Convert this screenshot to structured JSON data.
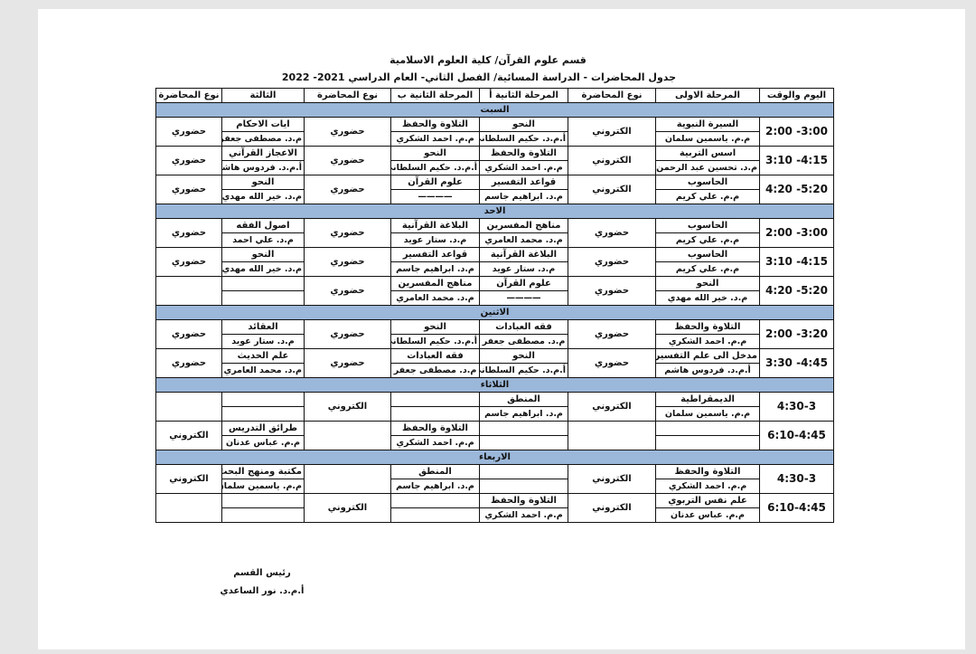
{
  "title_line1": "قسم علوم القرآن/ كلية العلوم الاسلامية",
  "title_line2": "جدول المحاضرات - الدراسة المسائية/ الفصل الثاني- العام الدراسي 2021- 2022",
  "headers": [
    "اليوم والوقت",
    "المرحلة الاولى",
    "نوع المحاضرة",
    "المرحلة الثانية أ",
    "المرحلة الثانية ب",
    "نوع المحاضرة",
    "الثالثة",
    "نوع المحاضرة"
  ],
  "day_bar_color": "#9bb7d9",
  "days": [
    {
      "name": "السبت",
      "slots": [
        {
          "time": "3:00- 2:00",
          "first": [
            "السيرة النبوية",
            "م.م. ياسمين سلمان"
          ],
          "type1": "الكتروني",
          "a": [
            "النحو",
            "أ.م.د. حكيم السلطاني"
          ],
          "b": [
            "التلاوة والحفظ",
            "م.م. احمد الشكري"
          ],
          "type2": "حضوري",
          "third": [
            "ايات الاحكام",
            "م.د. مصطفى جعفر"
          ],
          "type3": "حضوري"
        },
        {
          "time": "4:15- 3:10",
          "first": [
            "اسس التربية",
            "م.د. تحسين عبد الرحمن"
          ],
          "type1": "الكتروني",
          "a": [
            "التلاوة والحفظ",
            "م.م. احمد الشكري"
          ],
          "b": [
            "النحو",
            "أ.م.د. حكيم السلطاني"
          ],
          "type2": "حضوري",
          "third": [
            "الاعجاز القرآني",
            "أ.م.د. فردوس هاشم"
          ],
          "type3": "حضوري"
        },
        {
          "time": "5:20- 4:20",
          "first": [
            "الحاسوب",
            "م.م. علي كريم"
          ],
          "type1": "الكتروني",
          "a": [
            "قواعد التفسير",
            "م.د. ابراهيم جاسم"
          ],
          "b": [
            "علوم القرآن",
            "————"
          ],
          "type2": "حضوري",
          "third": [
            "النحو",
            "م.د. خير الله مهدي"
          ],
          "type3": "حضوري"
        }
      ]
    },
    {
      "name": "الاحد",
      "slots": [
        {
          "time": "3:00- 2:00",
          "first": [
            "الحاسوب",
            "م.م. علي كريم"
          ],
          "type1": "حضوري",
          "a": [
            "مناهج المفسرين",
            "م.د. محمد العامري"
          ],
          "b": [
            "البلاغة القرآنية",
            "م.د. ستار عويد"
          ],
          "type2": "حضوري",
          "third": [
            "اصول الفقه",
            "م.د. علي احمد"
          ],
          "type3": "حضوري"
        },
        {
          "time": "4:15- 3:10",
          "first": [
            "الحاسوب",
            "م.م. علي كريم"
          ],
          "type1": "حضوري",
          "a": [
            "البلاغة القرآنية",
            "م.د. ستار عويد"
          ],
          "b": [
            "قواعد التفسير",
            "م.د. ابراهيم جاسم"
          ],
          "type2": "حضوري",
          "third": [
            "النحو",
            "م.د. خير الله مهدي"
          ],
          "type3": "حضوري"
        },
        {
          "time": "5:20- 4:20",
          "first": [
            "النحو",
            "م.د. خير الله مهدي"
          ],
          "type1": "حضوري",
          "a": [
            "علوم القرآن",
            "————"
          ],
          "b": [
            "مناهج المفسرين",
            "م.د. محمد العامري"
          ],
          "type2": "حضوري",
          "third": [
            "",
            ""
          ],
          "type3": ""
        }
      ]
    },
    {
      "name": "الاثنين",
      "slots": [
        {
          "time": "3:20- 2:00",
          "first": [
            "التلاوة والحفظ",
            "م.م. احمد الشكري"
          ],
          "type1": "حضوري",
          "a": [
            "فقه العبادات",
            "م.د. مصطفى جعفر"
          ],
          "b": [
            "النحو",
            "أ.م.د. حكيم السلطاني"
          ],
          "type2": "حضوري",
          "third": [
            "العقائد",
            "م.د. ستار عويد"
          ],
          "type3": "حضوري"
        },
        {
          "time": "4:45- 3:30",
          "first": [
            "مدخل الى علم التفسير",
            "أ.م.د. فردوس هاشم"
          ],
          "type1": "حضوري",
          "a": [
            "النحو",
            "أ.م.د. حكيم السلطاني"
          ],
          "b": [
            "فقه العبادات",
            "م.د. مصطفى جعفر"
          ],
          "type2": "حضوري",
          "third": [
            "علم الحديث",
            "م.د. محمد العامري"
          ],
          "type3": "حضوري"
        }
      ]
    },
    {
      "name": "الثلاثاء",
      "slots": [
        {
          "time": "4:30-3",
          "first": [
            "الديمقراطية",
            "م.م. ياسمين سلمان"
          ],
          "type1": "الكتروني",
          "a": [
            "المنطق",
            "م.د. ابراهيم جاسم"
          ],
          "b": [
            "",
            ""
          ],
          "type2": "الكتروني",
          "third": [
            "",
            ""
          ],
          "type3": ""
        },
        {
          "time": "6:10-4:45",
          "first": [
            "",
            ""
          ],
          "type1": "",
          "a": [
            "",
            ""
          ],
          "b": [
            "التلاوة والحفظ",
            "م.م. احمد الشكري"
          ],
          "type2": "",
          "third": [
            "طرائق التدريس",
            "م.م. عباس عدنان"
          ],
          "type3": "الكتروني"
        }
      ]
    },
    {
      "name": "الاربعاء",
      "slots": [
        {
          "time": "4:30-3",
          "first": [
            "التلاوة والحفظ",
            "م.م. احمد الشكري"
          ],
          "type1": "الكتروني",
          "a": [
            "",
            ""
          ],
          "b": [
            "المنطق",
            "م.د. ابراهيم جاسم"
          ],
          "type2": "",
          "third": [
            "مكتبة ومنهج البحث",
            "م.م. ياسمين سلمان"
          ],
          "type3": "الكتروني"
        },
        {
          "time": "6:10-4:45",
          "first": [
            "علم نفس التربوي",
            "م.م. عباس عدنان"
          ],
          "type1": "الكتروني",
          "a": [
            "التلاوة والحفظ",
            "م.م. احمد الشكري"
          ],
          "b": [
            "",
            ""
          ],
          "type2": "الكتروني",
          "third": [
            "",
            ""
          ],
          "type3": ""
        }
      ]
    }
  ],
  "signature": {
    "role": "رئيس القسم",
    "name": "أ.م.د. نور الساعدي"
  }
}
